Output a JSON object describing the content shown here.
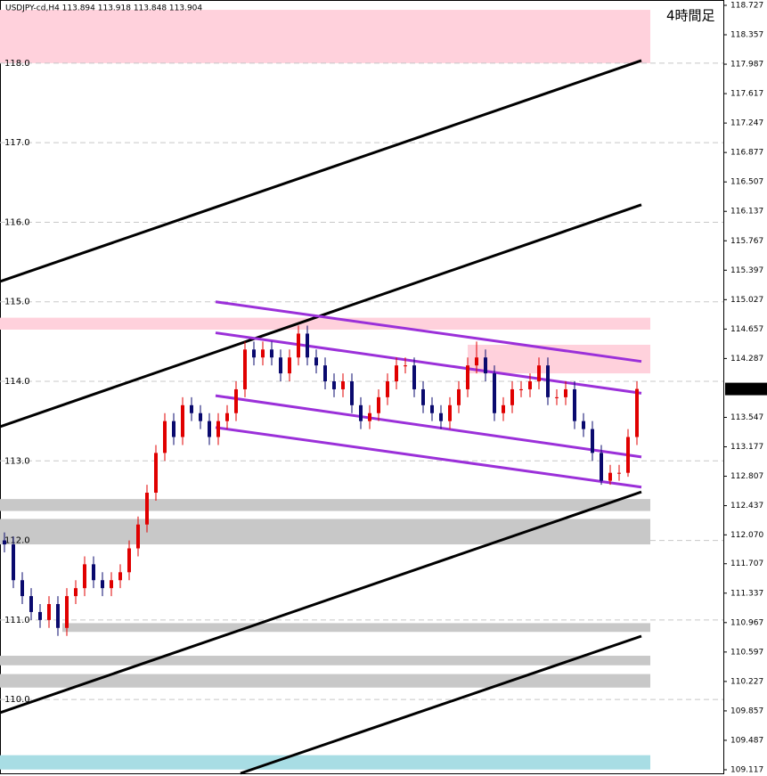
{
  "chart_data": {
    "type": "candlestick",
    "title": "USDJPY-cd,H4  113.894 113.918 113.848 113.904",
    "annotation": "4時間足",
    "up_color": "#e00000",
    "down_color": "#0a0a6e",
    "xlim": [
      -0.5,
      80.7
    ],
    "ylim": [
      109.072,
      118.794
    ],
    "yticks": [
      118.727,
      118.357,
      117.987,
      117.617,
      117.247,
      116.877,
      116.507,
      116.137,
      115.767,
      115.397,
      115.027,
      114.657,
      114.287,
      113.547,
      113.177,
      112.807,
      112.437,
      {
        "value": 112.07,
        "label": "112.070"
      },
      111.707,
      111.337,
      110.967,
      110.597,
      110.227,
      109.857,
      109.487,
      109.117
    ],
    "grid": [
      {
        "value": 118,
        "label": "118.0"
      },
      {
        "value": 117,
        "label": "117.0"
      },
      {
        "value": 116,
        "label": "116.0"
      },
      {
        "value": 115,
        "label": "115.0"
      },
      {
        "value": 114,
        "label": "114.0"
      },
      {
        "value": 113,
        "label": "113.0"
      },
      {
        "value": 112,
        "label": "112.0"
      },
      {
        "value": 111,
        "label": "111.0"
      },
      {
        "value": 110,
        "label": "110.0"
      }
    ],
    "last_price": 113.904,
    "open": [
      112.0,
      111.95,
      111.5,
      111.3,
      111.1,
      111.0,
      111.2,
      110.9,
      111.3,
      111.4,
      111.7,
      111.5,
      111.4,
      111.5,
      111.6,
      111.9,
      112.2,
      112.6,
      113.1,
      113.5,
      113.3,
      113.7,
      113.6,
      113.5,
      113.3,
      113.5,
      113.6,
      113.9,
      114.4,
      114.3,
      114.4,
      114.3,
      114.1,
      114.3,
      114.6,
      114.3,
      114.2,
      114.0,
      113.9,
      114.0,
      113.7,
      113.5,
      113.6,
      113.8,
      114.0,
      114.2,
      114.2,
      113.9,
      113.7,
      113.6,
      113.5,
      113.7,
      113.9,
      114.2,
      114.3,
      114.1,
      113.6,
      113.7,
      113.9,
      113.9,
      114.0,
      114.2,
      113.8,
      113.8,
      113.9,
      113.5,
      113.4,
      113.1,
      112.75,
      112.85,
      112.85,
      113.3
    ],
    "high": [
      112.1,
      112.05,
      111.6,
      111.4,
      111.2,
      111.3,
      111.3,
      111.4,
      111.5,
      111.8,
      111.8,
      111.6,
      111.6,
      111.7,
      112.0,
      112.3,
      112.7,
      113.2,
      113.6,
      113.6,
      113.8,
      113.8,
      113.7,
      113.6,
      113.6,
      113.7,
      114.0,
      114.5,
      114.5,
      114.5,
      114.5,
      114.4,
      114.4,
      114.7,
      114.7,
      114.4,
      114.3,
      114.1,
      114.1,
      114.1,
      113.8,
      113.7,
      113.9,
      114.1,
      114.3,
      114.3,
      114.3,
      114.0,
      113.8,
      113.7,
      113.8,
      114.0,
      114.3,
      114.5,
      114.4,
      114.2,
      113.8,
      114.0,
      114.0,
      114.1,
      114.3,
      114.3,
      113.9,
      114.0,
      114.0,
      113.6,
      113.5,
      113.2,
      112.95,
      112.95,
      113.4,
      114.0
    ],
    "low": [
      111.85,
      111.4,
      111.2,
      111.0,
      110.9,
      110.9,
      110.8,
      110.8,
      111.2,
      111.3,
      111.4,
      111.3,
      111.3,
      111.4,
      111.5,
      111.8,
      112.1,
      112.5,
      113.0,
      113.2,
      113.2,
      113.5,
      113.4,
      113.2,
      113.2,
      113.4,
      113.5,
      113.8,
      114.2,
      114.2,
      114.2,
      114.0,
      114.0,
      114.2,
      114.2,
      114.1,
      113.9,
      113.8,
      113.8,
      113.6,
      113.4,
      113.4,
      113.5,
      113.7,
      113.9,
      114.1,
      113.8,
      113.6,
      113.5,
      113.4,
      113.4,
      113.6,
      113.8,
      114.1,
      114.0,
      113.5,
      113.5,
      113.6,
      113.8,
      113.8,
      113.9,
      113.7,
      113.7,
      113.7,
      113.4,
      113.3,
      113.0,
      112.7,
      112.7,
      112.75,
      112.8,
      113.2
    ],
    "close": [
      111.95,
      111.5,
      111.3,
      111.1,
      111.0,
      111.2,
      110.9,
      111.3,
      111.4,
      111.7,
      111.5,
      111.4,
      111.5,
      111.6,
      111.9,
      112.2,
      112.6,
      113.1,
      113.5,
      113.3,
      113.7,
      113.6,
      113.5,
      113.3,
      113.5,
      113.6,
      113.9,
      114.4,
      114.3,
      114.4,
      114.3,
      114.1,
      114.3,
      114.6,
      114.3,
      114.2,
      114.0,
      113.9,
      114.0,
      113.7,
      113.5,
      113.6,
      113.8,
      114.0,
      114.2,
      114.2,
      113.9,
      113.7,
      113.6,
      113.5,
      113.7,
      113.9,
      114.2,
      114.3,
      114.1,
      113.6,
      113.7,
      113.9,
      113.9,
      114.0,
      114.2,
      113.8,
      113.8,
      113.9,
      113.5,
      113.4,
      113.1,
      112.75,
      112.85,
      112.85,
      113.3,
      113.904
    ],
    "zones": [
      {
        "x": [
          -0.5,
          72.5
        ],
        "y": [
          118.0,
          118.67
        ],
        "color": "#ffd1dc"
      },
      {
        "x": [
          -0.5,
          72.5
        ],
        "y": [
          114.65,
          114.8
        ],
        "color": "#ffd1dc"
      },
      {
        "x": [
          52,
          72.5
        ],
        "y": [
          114.1,
          114.46
        ],
        "color": "#ffd1dc"
      },
      {
        "x": [
          -0.5,
          72.5
        ],
        "y": [
          112.37,
          112.52
        ],
        "color": "#c8c8c8"
      },
      {
        "x": [
          -0.5,
          72.5
        ],
        "y": [
          111.95,
          112.27
        ],
        "color": "#c8c8c8"
      },
      {
        "x": [
          6.5,
          72.5
        ],
        "y": [
          110.85,
          110.96
        ],
        "color": "#c8c8c8"
      },
      {
        "x": [
          -0.5,
          72.5
        ],
        "y": [
          110.43,
          110.55
        ],
        "color": "#c8c8c8"
      },
      {
        "x": [
          -0.5,
          72.5
        ],
        "y": [
          110.15,
          110.32
        ],
        "color": "#c8c8c8"
      },
      {
        "x": [
          -0.5,
          72.5
        ],
        "y": [
          109.12,
          109.3
        ],
        "color": "#a8dde4"
      }
    ],
    "lines": [
      {
        "x": [
          -0.5,
          71.5
        ],
        "y": [
          115.255,
          118.033
        ],
        "color": "#000000"
      },
      {
        "x": [
          -0.5,
          71.5
        ],
        "y": [
          113.43,
          116.22
        ],
        "color": "#000000"
      },
      {
        "x": [
          -0.5,
          71.5
        ],
        "y": [
          109.834,
          112.61
        ],
        "color": "#000000"
      },
      {
        "x": [
          26.5,
          71.5
        ],
        "y": [
          109.072,
          110.797
        ],
        "color": "#000000"
      },
      {
        "x": [
          23.7,
          71.5
        ],
        "y": [
          115.0,
          114.25
        ],
        "color": "#9b30d9"
      },
      {
        "x": [
          23.7,
          71.5
        ],
        "y": [
          114.61,
          113.85
        ],
        "color": "#9b30d9"
      },
      {
        "x": [
          23.7,
          71.5
        ],
        "y": [
          113.82,
          113.05
        ],
        "color": "#9b30d9"
      },
      {
        "x": [
          23.7,
          71.5
        ],
        "y": [
          113.42,
          112.67
        ],
        "color": "#9b30d9"
      }
    ]
  }
}
